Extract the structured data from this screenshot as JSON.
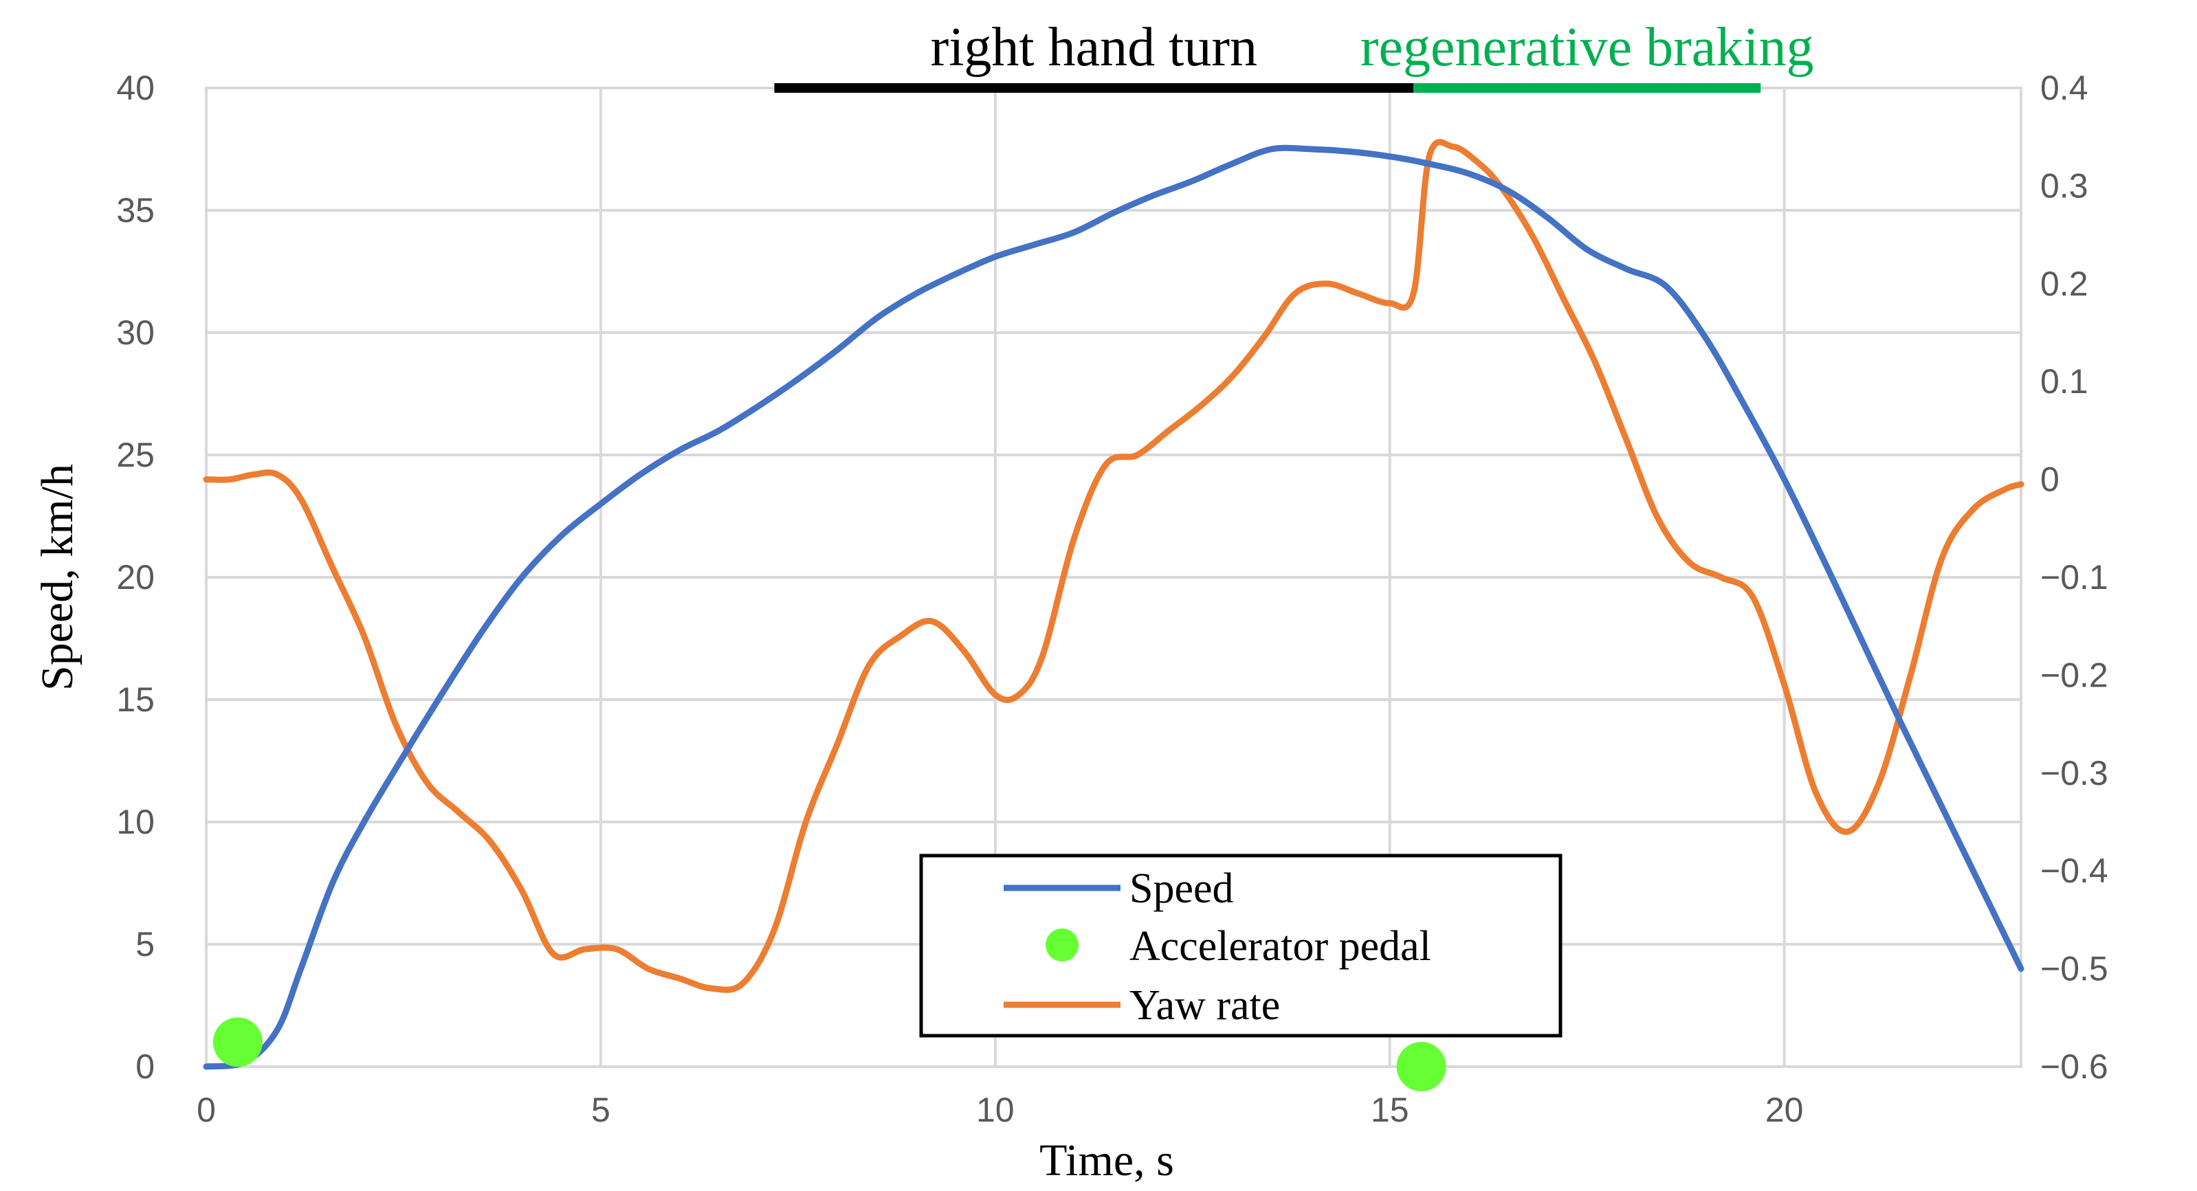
{
  "chart_data": {
    "type": "line",
    "xlabel": "Time, s",
    "ylabel": "Speed, km/h",
    "xlim": [
      0,
      23
    ],
    "ylim": [
      0,
      40
    ],
    "y2lim": [
      -0.6,
      0.4
    ],
    "x_ticks": [
      "0",
      "5",
      "10",
      "15",
      "20"
    ],
    "y_ticks": [
      "0",
      "5",
      "10",
      "15",
      "20",
      "25",
      "30",
      "35",
      "40"
    ],
    "y2_ticks": [
      "-0.6",
      "-0.5",
      "-0.4",
      "-0.3",
      "-0.2",
      "-0.1",
      "0",
      "0.1",
      "0.2",
      "0.3",
      "0.4"
    ],
    "grid": true,
    "legend_position": "bottom-center",
    "colors": {
      "speed": "#4472C4",
      "yaw": "#ED7D31",
      "pedal": "#66FF33",
      "turn": "#000000",
      "braking": "#00B050"
    },
    "series": [
      {
        "name": "Speed",
        "axis": "left",
        "style": "line",
        "x": [
          0,
          0.5,
          0.9,
          1.2,
          1.6,
          2.0,
          2.5,
          3.0,
          3.5,
          4.0,
          4.5,
          5.0,
          5.5,
          6.0,
          6.5,
          7.0,
          7.5,
          8.0,
          8.5,
          9.0,
          9.5,
          10.0,
          10.5,
          11.0,
          11.5,
          12.0,
          12.5,
          13.0,
          13.5,
          14.0,
          14.5,
          15.0,
          15.5,
          16.0,
          16.5,
          17.0,
          17.5,
          18.0,
          18.5,
          19.0,
          19.5,
          20.0,
          20.5,
          21.0,
          21.5,
          22.0,
          22.5,
          23.0
        ],
        "values": [
          0.0,
          0.2,
          1.5,
          4.0,
          7.5,
          10.0,
          12.7,
          15.3,
          17.8,
          20.0,
          21.7,
          23.0,
          24.2,
          25.2,
          26.0,
          27.0,
          28.1,
          29.3,
          30.6,
          31.6,
          32.4,
          33.1,
          33.6,
          34.1,
          34.9,
          35.6,
          36.2,
          36.9,
          37.5,
          37.5,
          37.4,
          37.2,
          36.9,
          36.5,
          35.8,
          34.7,
          33.4,
          32.6,
          31.9,
          29.8,
          27.0,
          24.0,
          20.7,
          17.3,
          13.9,
          10.6,
          7.3,
          4.0
        ]
      },
      {
        "name": "Accelerator pedal",
        "axis": "left",
        "style": "marker",
        "x": [
          0.4,
          15.4
        ],
        "values": [
          1.0,
          0.0
        ]
      },
      {
        "name": "Yaw rate",
        "axis": "right",
        "style": "line",
        "x": [
          0,
          0.3,
          0.6,
          0.9,
          1.2,
          1.6,
          2.0,
          2.4,
          2.8,
          3.2,
          3.6,
          4.0,
          4.4,
          4.8,
          5.2,
          5.6,
          6.0,
          6.4,
          6.8,
          7.2,
          7.6,
          8.0,
          8.4,
          8.8,
          9.2,
          9.6,
          10.0,
          10.3,
          10.6,
          11.0,
          11.4,
          11.8,
          12.2,
          12.6,
          13.0,
          13.4,
          13.8,
          14.2,
          14.6,
          15.0,
          15.3,
          15.5,
          15.8,
          16.1,
          16.4,
          16.8,
          17.2,
          17.6,
          18.0,
          18.4,
          18.8,
          19.2,
          19.6,
          20.0,
          20.4,
          20.8,
          21.2,
          21.6,
          22.0,
          22.4,
          22.8,
          23.0
        ],
        "values": [
          0.0,
          0.0,
          0.005,
          0.005,
          -0.02,
          -0.09,
          -0.16,
          -0.25,
          -0.31,
          -0.34,
          -0.37,
          -0.42,
          -0.485,
          -0.48,
          -0.48,
          -0.5,
          -0.51,
          -0.52,
          -0.515,
          -0.46,
          -0.35,
          -0.27,
          -0.19,
          -0.16,
          -0.145,
          -0.175,
          -0.22,
          -0.22,
          -0.18,
          -0.06,
          0.015,
          0.025,
          0.05,
          0.075,
          0.105,
          0.145,
          0.19,
          0.2,
          0.19,
          0.18,
          0.19,
          0.33,
          0.34,
          0.325,
          0.3,
          0.25,
          0.185,
          0.12,
          0.04,
          -0.04,
          -0.085,
          -0.1,
          -0.12,
          -0.21,
          -0.32,
          -0.36,
          -0.31,
          -0.2,
          -0.08,
          -0.03,
          -0.01,
          -0.005
        ]
      }
    ],
    "phases": [
      {
        "label": "right hand turn",
        "start": 7.2,
        "end": 15.3,
        "color": "#000000"
      },
      {
        "label": "regenerative braking",
        "start": 15.3,
        "end": 19.7,
        "color": "#00B050"
      }
    ]
  }
}
